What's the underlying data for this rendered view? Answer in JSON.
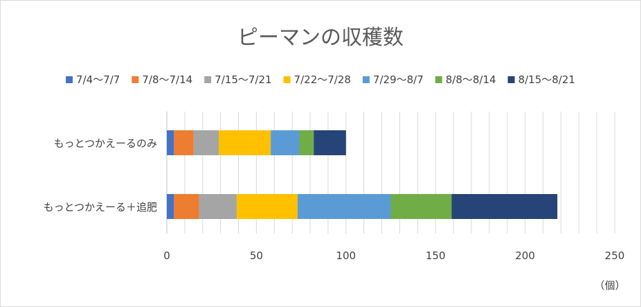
{
  "chart_data": {
    "type": "bar",
    "orientation": "horizontal",
    "stacked": true,
    "title": "ピーマンの収穫数",
    "unit_label": "（個）",
    "categories": [
      "もっとつかえーるのみ",
      "もっとつかえーる＋追肥"
    ],
    "series": [
      {
        "name": "7/4〜7/7",
        "color": "#4472c4",
        "values": [
          4,
          4
        ]
      },
      {
        "name": "7/8〜7/14",
        "color": "#ed7d31",
        "values": [
          11,
          14
        ]
      },
      {
        "name": "7/15〜7/21",
        "color": "#a5a5a5",
        "values": [
          14,
          21
        ]
      },
      {
        "name": "7/22〜7/28",
        "color": "#ffc000",
        "values": [
          29,
          34
        ]
      },
      {
        "name": "7/29〜8/7",
        "color": "#5b9bd5",
        "values": [
          16,
          52
        ]
      },
      {
        "name": "8/8〜8/14",
        "color": "#70ad47",
        "values": [
          8,
          34
        ]
      },
      {
        "name": "8/15〜8/21",
        "color": "#264478",
        "values": [
          18,
          59
        ]
      }
    ],
    "xlim": [
      0,
      250
    ],
    "major_ticks": [
      0,
      50,
      100,
      150,
      200,
      250
    ],
    "minor_grid_step": 10,
    "grid": true,
    "legend_position": "top"
  }
}
